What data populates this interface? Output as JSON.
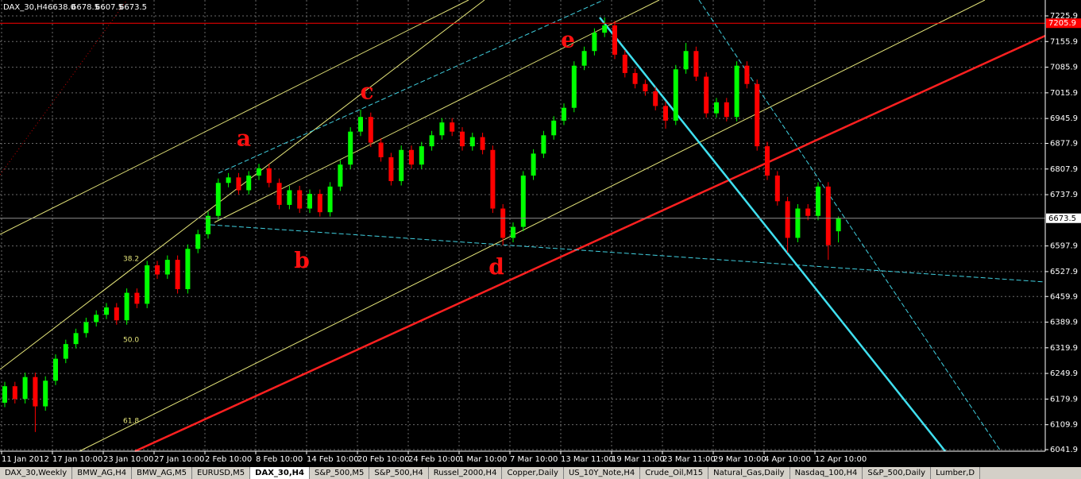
{
  "chart_data": {
    "type": "candlestick",
    "title": "DAX_30,H4",
    "last_bar_labels": [
      "6638.0",
      "6678.5",
      "6607.5",
      "6673.5"
    ],
    "categories": [
      "11 Jan 2012",
      null,
      null,
      null,
      null,
      "17 Jan 10:00",
      null,
      null,
      null,
      null,
      "23 Jan 10:00",
      null,
      null,
      null,
      null,
      "27 Jan 10:00",
      null,
      null,
      null,
      null,
      "2 Feb 10:00",
      null,
      null,
      null,
      null,
      "8 Feb 10:00",
      null,
      null,
      null,
      null,
      "14 Feb 10:00",
      null,
      null,
      null,
      null,
      "20 Feb 10:00",
      null,
      null,
      null,
      null,
      "24 Feb 10:00",
      null,
      null,
      null,
      null,
      "1 Mar 10:00",
      null,
      null,
      null,
      null,
      "7 Mar 10:00",
      null,
      null,
      null,
      null,
      "13 Mar 11:00",
      null,
      null,
      null,
      null,
      "19 Mar 11:00",
      null,
      null,
      null,
      null,
      "23 Mar 11:00",
      null,
      null,
      null,
      null,
      "29 Mar 10:00",
      null,
      null,
      null,
      null,
      "4 Apr 10:00",
      null,
      null,
      null,
      null,
      "12 Apr 10:00",
      null,
      null
    ],
    "open": [
      6170,
      6215,
      6180,
      6240,
      6160,
      6230,
      6290,
      6330,
      6360,
      6390,
      6410,
      6430,
      6395,
      6470,
      6440,
      6545,
      6520,
      6560,
      6480,
      6590,
      6630,
      6680,
      6770,
      6785,
      6750,
      6790,
      6810,
      6770,
      6710,
      6750,
      6700,
      6740,
      6690,
      6760,
      6820,
      6910,
      6950,
      6880,
      6840,
      6775,
      6860,
      6820,
      6870,
      6900,
      6935,
      6910,
      6870,
      6895,
      6860,
      6700,
      6620,
      6650,
      6790,
      6850,
      6900,
      6940,
      6975,
      7090,
      7130,
      7180,
      7200,
      7120,
      7070,
      7040,
      7020,
      6980,
      6940,
      7080,
      7130,
      7060,
      6960,
      6990,
      6950,
      7090,
      7040,
      6870,
      6790,
      6720,
      6620,
      6700,
      6680,
      6760,
      6638
    ],
    "high": [
      6227,
      6227,
      6252,
      6252,
      6242,
      6302,
      6342,
      6372,
      6402,
      6422,
      6442,
      6442,
      6482,
      6482,
      6557,
      6557,
      6572,
      6572,
      6602,
      6642,
      6692,
      6782,
      6797,
      6797,
      6802,
      6822,
      6822,
      6782,
      6762,
      6762,
      6752,
      6752,
      6772,
      6832,
      6922,
      6970,
      6962,
      6892,
      6852,
      6872,
      6872,
      6882,
      6912,
      6947,
      6947,
      6922,
      6907,
      6907,
      6872,
      6712,
      6662,
      6802,
      6862,
      6912,
      6952,
      6987,
      7102,
      7142,
      7192,
      7222,
      7212,
      7132,
      7082,
      7052,
      7032,
      6992,
      7092,
      7152,
      7142,
      7072,
      7002,
      7002,
      7102,
      7102,
      7052,
      6882,
      6802,
      6732,
      6712,
      6712,
      6772,
      6772,
      6678.5
    ],
    "low": [
      6158,
      6168,
      6168,
      6090,
      6148,
      6218,
      6278,
      6318,
      6348,
      6378,
      6398,
      6383,
      6383,
      6428,
      6428,
      6508,
      6508,
      6468,
      6468,
      6578,
      6618,
      6668,
      6758,
      6738,
      6738,
      6778,
      6758,
      6698,
      6698,
      6688,
      6688,
      6678,
      6678,
      6748,
      6808,
      6898,
      6868,
      6828,
      6763,
      6763,
      6808,
      6808,
      6858,
      6888,
      6898,
      6858,
      6858,
      6848,
      6688,
      6600,
      6608,
      6638,
      6778,
      6838,
      6888,
      6928,
      6963,
      7078,
      7118,
      7168,
      7108,
      7058,
      7028,
      7008,
      6968,
      6918,
      6928,
      7068,
      7048,
      6948,
      6948,
      6938,
      6938,
      7028,
      6858,
      6778,
      6708,
      6580,
      6608,
      6668,
      6668,
      6560,
      6607.5
    ],
    "close": [
      6215,
      6180,
      6240,
      6160,
      6230,
      6290,
      6330,
      6360,
      6390,
      6410,
      6430,
      6395,
      6470,
      6440,
      6545,
      6520,
      6560,
      6480,
      6590,
      6630,
      6680,
      6770,
      6785,
      6750,
      6790,
      6810,
      6770,
      6710,
      6750,
      6700,
      6740,
      6690,
      6760,
      6820,
      6910,
      6950,
      6880,
      6840,
      6775,
      6860,
      6820,
      6870,
      6900,
      6935,
      6910,
      6870,
      6895,
      6860,
      6700,
      6620,
      6650,
      6790,
      6850,
      6900,
      6940,
      6975,
      7090,
      7130,
      7180,
      7200,
      7120,
      7070,
      7040,
      7020,
      6980,
      6940,
      7080,
      7130,
      7060,
      6960,
      6990,
      6950,
      7090,
      7040,
      6870,
      6790,
      6720,
      6620,
      6700,
      6680,
      6760,
      6600,
      6673.5
    ],
    "up_color": "#00ff00",
    "down_color": "#ff0000",
    "ylim": [
      6037.6,
      7269.3
    ],
    "yticks": [
      7225.9,
      7155.9,
      7085.9,
      7015.9,
      6945.9,
      6877.9,
      6807.9,
      6737.9,
      6597.9,
      6527.9,
      6459.9,
      6389.9,
      6319.9,
      6249.9,
      6179.9,
      6109.9,
      6041.9
    ],
    "grid": true,
    "price_line": 7205.9,
    "annotations": [
      "a",
      "b",
      "c",
      "d",
      "e"
    ],
    "fib_levels": [
      "38.2",
      "50.0",
      "61.8"
    ]
  },
  "tabs": [
    "DAX_30,Weekly",
    "BMW_AG,H4",
    "BMW_AG,M5",
    "EURUSD,M5",
    "DAX_30,H4",
    "S&P_500,M5",
    "S&P_500,H4",
    "Russel_2000,H4",
    "Copper,Daily",
    "US_10Y_Note,H4",
    "Crude_Oil,M15",
    "Natural_Gas,Daily",
    "Nasdaq_100,H4",
    "S&P_500,Daily",
    "Lumber,D"
  ],
  "active_tab": 4
}
